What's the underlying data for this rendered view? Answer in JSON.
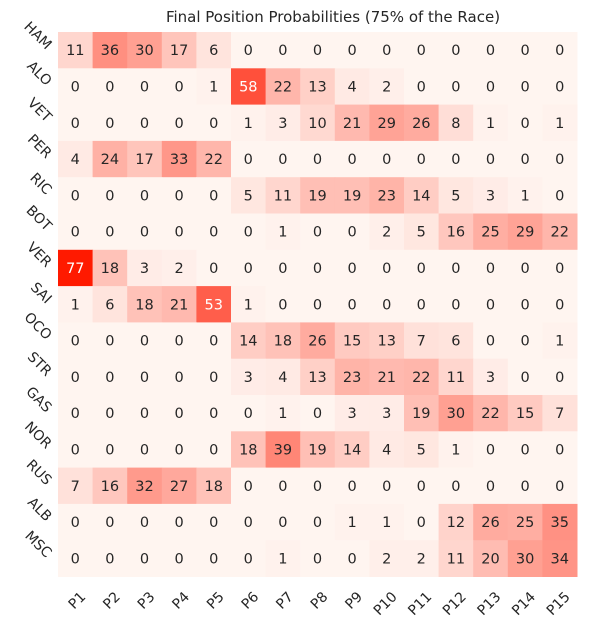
{
  "chart_data": {
    "type": "heatmap",
    "title": "Final Position Probabilities (75% of the Race)",
    "xlabel": "",
    "ylabel": "",
    "x_labels": [
      "P1",
      "P2",
      "P3",
      "P4",
      "P5",
      "P6",
      "P7",
      "P8",
      "P9",
      "P10",
      "P11",
      "P12",
      "P13",
      "P14",
      "P15"
    ],
    "y_labels": [
      "HAM",
      "ALO",
      "VET",
      "PER",
      "RIC",
      "BOT",
      "VER",
      "SAI",
      "OCO",
      "STR",
      "GAS",
      "NOR",
      "RUS",
      "ALB",
      "MSC"
    ],
    "values": [
      [
        11,
        36,
        30,
        17,
        6,
        0,
        0,
        0,
        0,
        0,
        0,
        0,
        0,
        0,
        0
      ],
      [
        0,
        0,
        0,
        0,
        1,
        58,
        22,
        13,
        4,
        2,
        0,
        0,
        0,
        0,
        0
      ],
      [
        0,
        0,
        0,
        0,
        0,
        1,
        3,
        10,
        21,
        29,
        26,
        8,
        1,
        0,
        1
      ],
      [
        4,
        24,
        17,
        33,
        22,
        0,
        0,
        0,
        0,
        0,
        0,
        0,
        0,
        0,
        0
      ],
      [
        0,
        0,
        0,
        0,
        0,
        5,
        11,
        19,
        19,
        23,
        14,
        5,
        3,
        1,
        0
      ],
      [
        0,
        0,
        0,
        0,
        0,
        0,
        1,
        0,
        0,
        2,
        5,
        16,
        25,
        29,
        22
      ],
      [
        77,
        18,
        3,
        2,
        0,
        0,
        0,
        0,
        0,
        0,
        0,
        0,
        0,
        0,
        0
      ],
      [
        1,
        6,
        18,
        21,
        53,
        1,
        0,
        0,
        0,
        0,
        0,
        0,
        0,
        0,
        0
      ],
      [
        0,
        0,
        0,
        0,
        0,
        14,
        18,
        26,
        15,
        13,
        7,
        6,
        0,
        0,
        1
      ],
      [
        0,
        0,
        0,
        0,
        0,
        3,
        4,
        13,
        23,
        21,
        22,
        11,
        3,
        0,
        0
      ],
      [
        0,
        0,
        0,
        0,
        0,
        0,
        1,
        0,
        3,
        3,
        19,
        30,
        22,
        15,
        7
      ],
      [
        0,
        0,
        0,
        0,
        0,
        18,
        39,
        19,
        14,
        4,
        5,
        1,
        0,
        0,
        0
      ],
      [
        7,
        16,
        32,
        27,
        18,
        0,
        0,
        0,
        0,
        0,
        0,
        0,
        0,
        0,
        0
      ],
      [
        0,
        0,
        0,
        0,
        0,
        0,
        0,
        0,
        1,
        1,
        0,
        12,
        26,
        25,
        35
      ],
      [
        0,
        0,
        0,
        0,
        0,
        0,
        1,
        0,
        0,
        2,
        2,
        11,
        20,
        30,
        34
      ]
    ],
    "value_range": [
      0,
      77
    ],
    "colormap": {
      "low": "#fff5f0",
      "high": "#ff1a00"
    },
    "grid": false,
    "legend": "none"
  }
}
